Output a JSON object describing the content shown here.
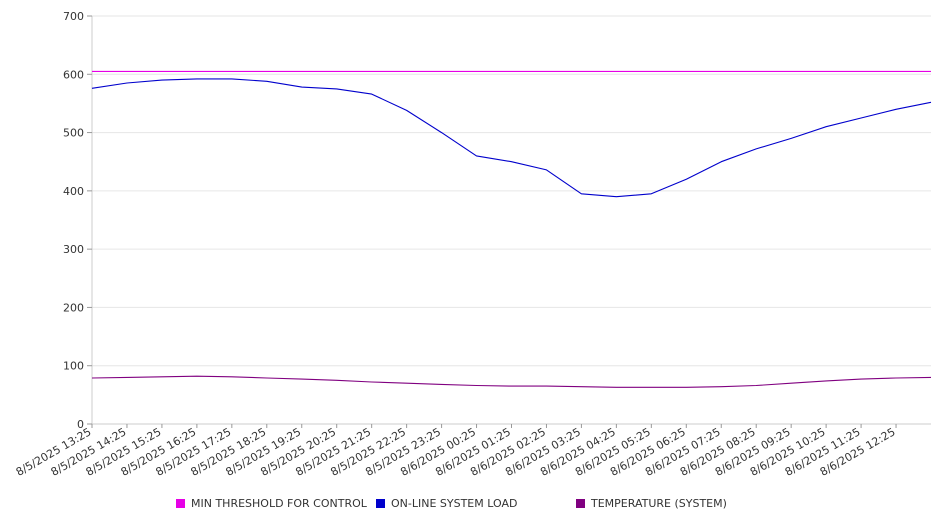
{
  "chart_data": {
    "type": "line",
    "title": "",
    "xlabel": "",
    "ylabel": "",
    "ylim": [
      0,
      700
    ],
    "yticks": [
      0,
      100,
      200,
      300,
      400,
      500,
      600,
      700
    ],
    "grid": true,
    "legend_position": "bottom",
    "x_tick_labels": [
      "8/5/2025 13:25",
      "8/5/2025 14:25",
      "8/5/2025 15:25",
      "8/5/2025 16:25",
      "8/5/2025 17:25",
      "8/5/2025 18:25",
      "8/5/2025 19:25",
      "8/5/2025 20:25",
      "8/5/2025 21:25",
      "8/5/2025 22:25",
      "8/5/2025 23:25",
      "8/6/2025 00:25",
      "8/6/2025 01:25",
      "8/6/2025 02:25",
      "8/6/2025 03:25",
      "8/6/2025 04:25",
      "8/6/2025 05:25",
      "8/6/2025 06:25",
      "8/6/2025 07:25",
      "8/6/2025 08:25",
      "8/6/2025 09:25",
      "8/6/2025 10:25",
      "8/6/2025 11:25",
      "8/6/2025 12:25"
    ],
    "x": [
      "8/5/2025 13:25",
      "8/5/2025 14:25",
      "8/5/2025 15:25",
      "8/5/2025 16:25",
      "8/5/2025 17:25",
      "8/5/2025 18:25",
      "8/5/2025 19:25",
      "8/5/2025 20:25",
      "8/5/2025 21:25",
      "8/5/2025 22:25",
      "8/5/2025 23:25",
      "8/6/2025 00:25",
      "8/6/2025 01:25",
      "8/6/2025 02:25",
      "8/6/2025 03:25",
      "8/6/2025 04:25",
      "8/6/2025 05:25",
      "8/6/2025 06:25",
      "8/6/2025 07:25",
      "8/6/2025 08:25",
      "8/6/2025 09:25",
      "8/6/2025 10:25",
      "8/6/2025 11:25",
      "8/6/2025 12:25",
      "8/6/2025 13:20"
    ],
    "series": [
      {
        "name": "MIN THRESHOLD FOR CONTROL",
        "color": "#e600e6",
        "values": [
          605,
          605,
          605,
          605,
          605,
          605,
          605,
          605,
          605,
          605,
          605,
          605,
          605,
          605,
          605,
          605,
          605,
          605,
          605,
          605,
          605,
          605,
          605,
          605,
          605
        ]
      },
      {
        "name": "ON-LINE SYSTEM LOAD",
        "color": "#0000cc",
        "values": [
          576,
          585,
          590,
          592,
          592,
          588,
          578,
          575,
          566,
          538,
          500,
          460,
          450,
          436,
          395,
          390,
          395,
          420,
          450,
          472,
          490,
          510,
          525,
          540,
          552
        ]
      },
      {
        "name": "TEMPERATURE (SYSTEM)",
        "color": "#800080",
        "values": [
          79,
          80,
          81,
          82,
          81,
          79,
          77,
          75,
          72,
          70,
          68,
          66,
          65,
          65,
          64,
          63,
          63,
          63,
          64,
          66,
          70,
          74,
          77,
          79,
          80
        ]
      }
    ]
  }
}
